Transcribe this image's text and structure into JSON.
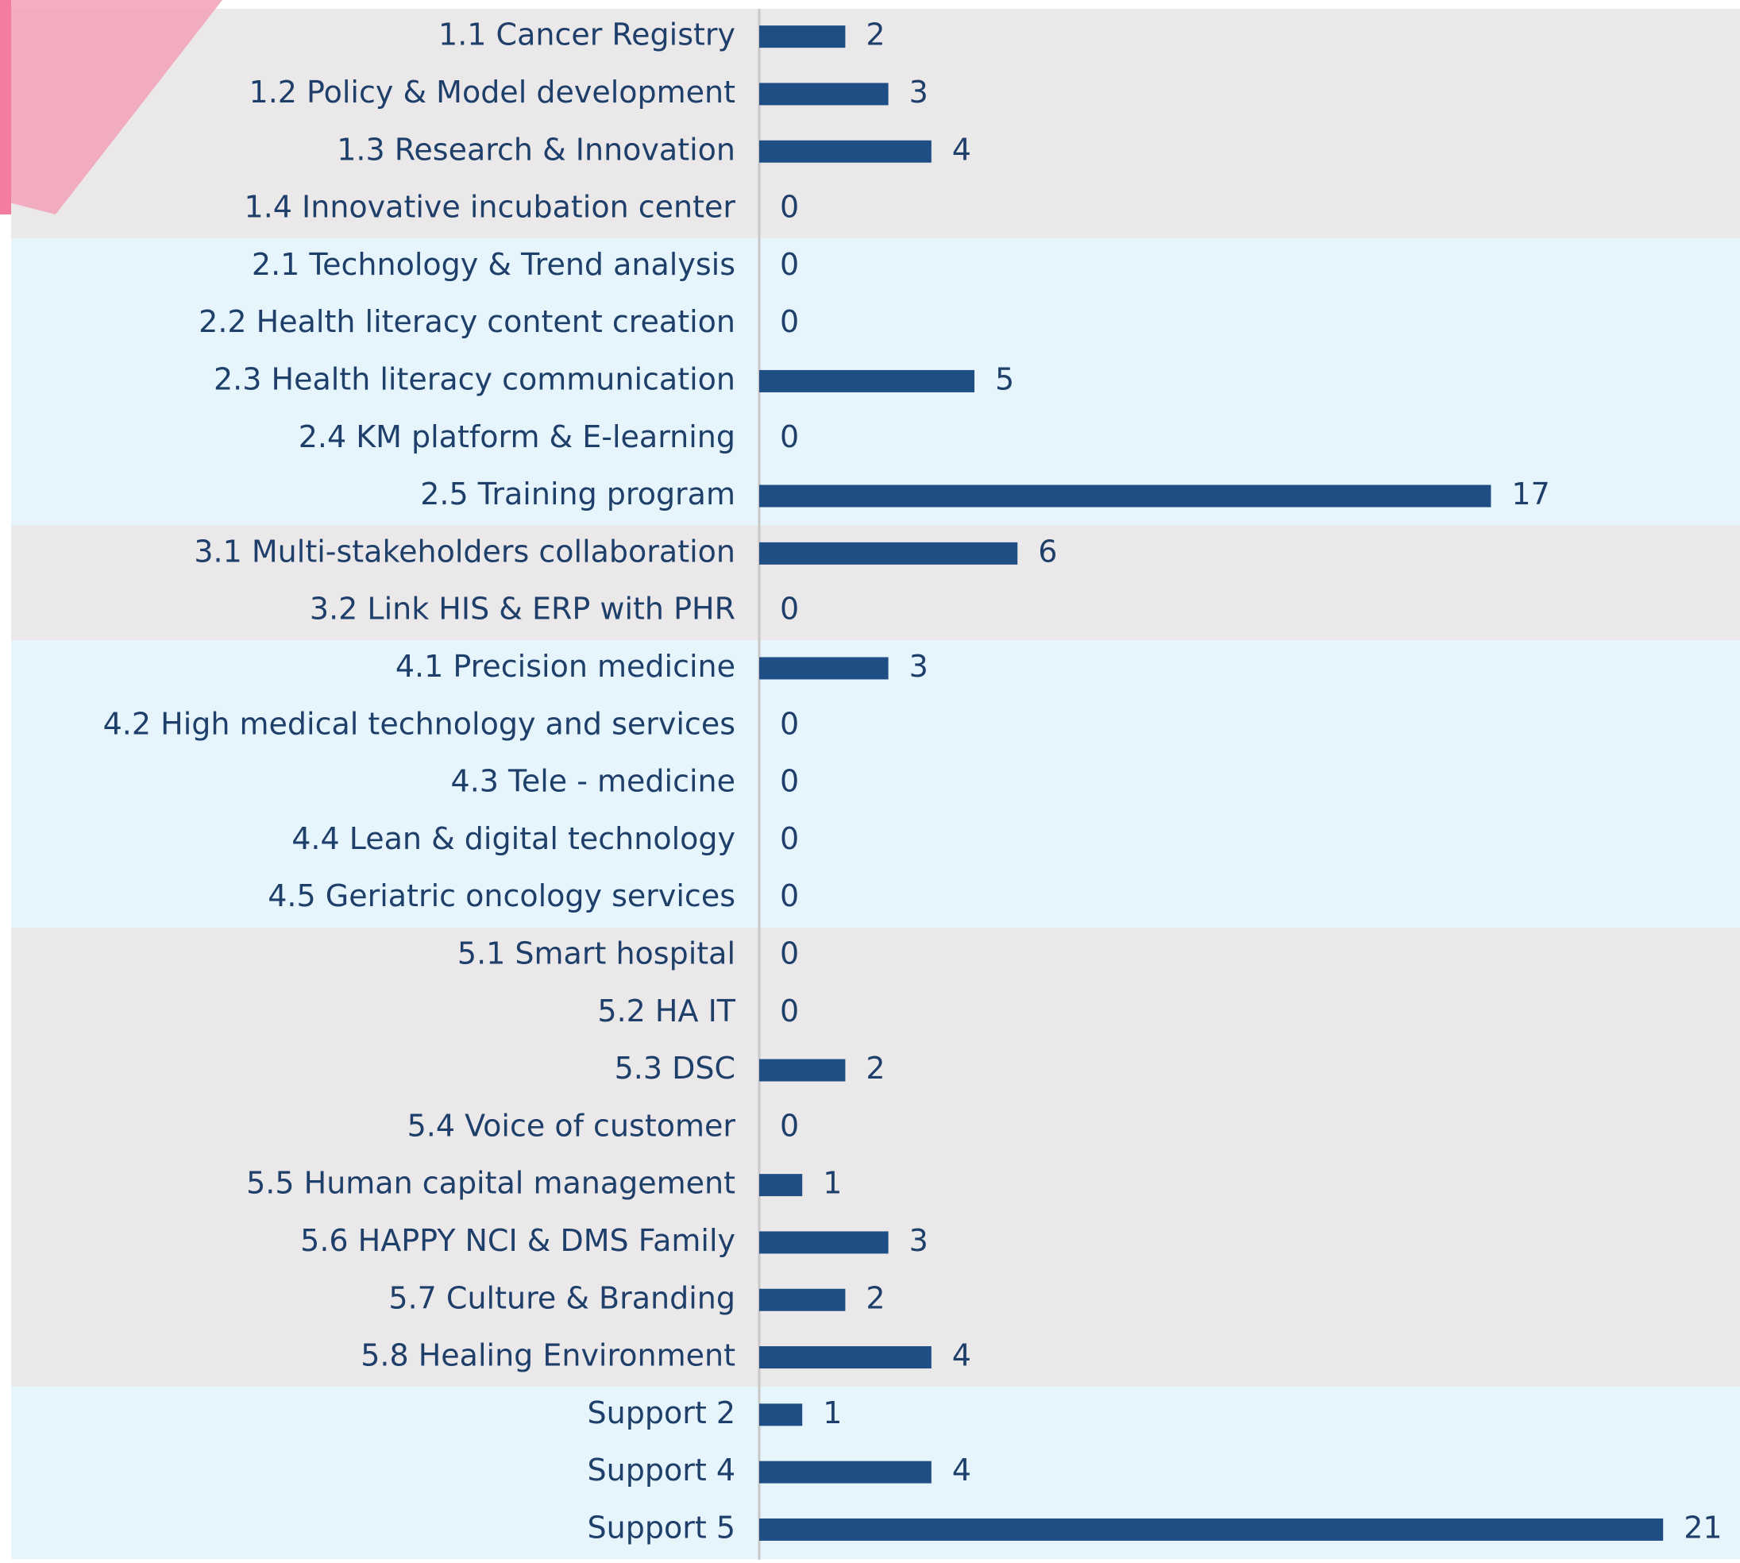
{
  "chart_data": {
    "type": "bar",
    "orientation": "horizontal",
    "categories": [
      "1.1 Cancer Registry",
      "1.2 Policy & Model development",
      "1.3 Research & Innovation",
      "1.4 Innovative incubation center",
      "2.1 Technology & Trend analysis",
      "2.2 Health literacy content creation",
      "2.3 Health literacy communication",
      "2.4 KM platform & E-learning",
      "2.5 Training program",
      "3.1 Multi-stakeholders collaboration",
      "3.2 Link HIS & ERP with PHR",
      "4.1 Precision medicine",
      "4.2 High medical technology and services",
      "4.3 Tele - medicine",
      "4.4 Lean & digital technology",
      "4.5 Geriatric oncology services",
      "5.1 Smart hospital",
      "5.2 HA IT",
      "5.3 DSC",
      "5.4 Voice of customer",
      "5.5 Human capital management",
      "5.6 HAPPY NCI & DMS Family",
      "5.7 Culture & Branding",
      "5.8 Healing Environment",
      "Support 2",
      "Support 4",
      "Support 5"
    ],
    "values": [
      2,
      3,
      4,
      0,
      0,
      0,
      5,
      0,
      17,
      6,
      0,
      3,
      0,
      0,
      0,
      0,
      0,
      0,
      2,
      0,
      1,
      3,
      2,
      4,
      1,
      4,
      21
    ],
    "color": "#1f4e84"
  }
}
